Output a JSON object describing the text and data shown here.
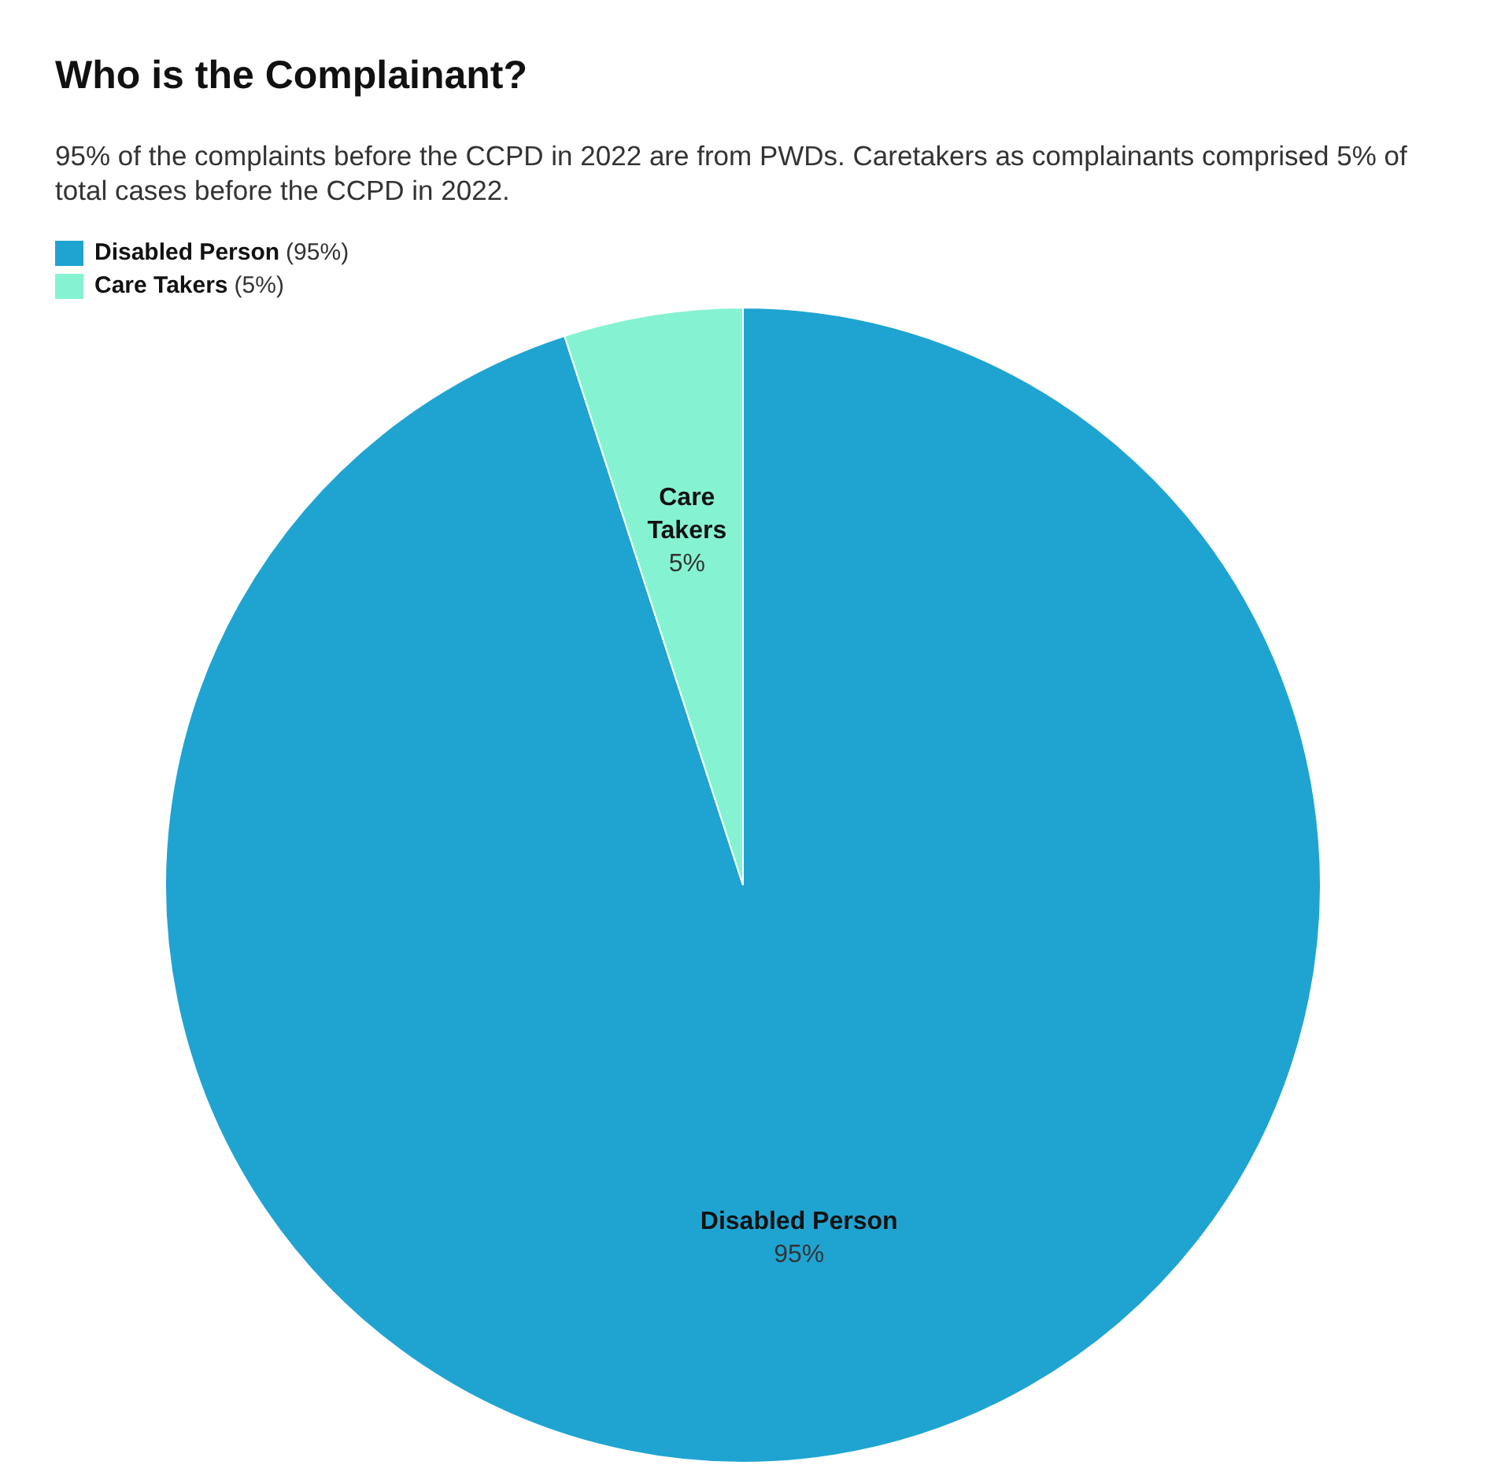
{
  "chart_data": {
    "type": "pie",
    "title": "Who is the Complainant?",
    "subtitle": "95% of the complaints before the CCPD in 2022 are from PWDs. Caretakers as complainants comprised 5% of total cases before the CCPD in 2022.",
    "categories": [
      "Disabled Person",
      "Care Takers"
    ],
    "values": [
      95,
      5
    ],
    "value_labels": [
      "95%",
      "5%"
    ],
    "annotations": [
      "(95%)",
      "(5%)"
    ],
    "colors": [
      "#1fa4d2",
      "#85f3d2"
    ],
    "legend": "top left",
    "data_labels": true
  }
}
